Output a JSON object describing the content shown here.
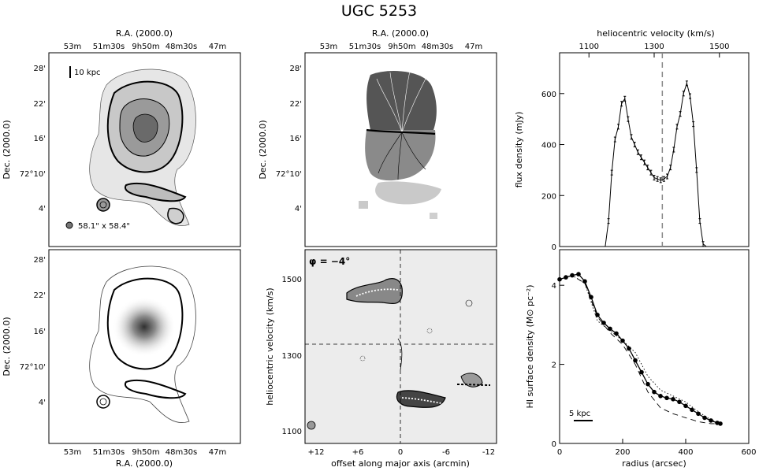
{
  "title": "UGC 5253",
  "panels": {
    "tl": {
      "top_axis_label": "R.A. (2000.0)",
      "top_ticks": [
        "53m",
        "51m30s",
        "9h50m",
        "48m30s",
        "47m"
      ],
      "y_axis_label": "Dec. (2000.0)",
      "y_ticks": [
        "28'",
        "22'",
        "16'",
        "72°10'",
        "4'"
      ],
      "scalebar_label": "10 kpc",
      "beam_label": "58.1\" x 58.4\""
    },
    "tm": {
      "top_axis_label": "R.A. (2000.0)",
      "top_ticks": [
        "53m",
        "51m30s",
        "9h50m",
        "48m30s",
        "47m"
      ],
      "y_axis_label": "Dec. (2000.0)",
      "y_ticks": [
        "28'",
        "22'",
        "16'",
        "72°10'",
        "4'"
      ]
    },
    "bl": {
      "bottom_axis_label": "R.A. (2000.0)",
      "bottom_ticks": [
        "53m",
        "51m30s",
        "9h50m",
        "48m30s",
        "47m"
      ],
      "y_axis_label": "Dec. (2000.0)",
      "y_ticks": [
        "28'",
        "22'",
        "16'",
        "72°10'",
        "4'"
      ]
    },
    "bm": {
      "annotation": "φ = −4°",
      "x_axis_label": "offset along major axis (arcmin)",
      "y_axis_label": "heliocentric velocity (km/s)",
      "x_ticks": [
        "+12",
        "+6",
        "0",
        "-6",
        "-12"
      ],
      "y_ticks": [
        "1500",
        "1300",
        "1100"
      ]
    },
    "tr": {
      "top_axis_label": "heliocentric velocity (km/s)",
      "y_axis_label": "flux density (mJy)"
    },
    "br": {
      "x_axis_label": "radius (arcsec)",
      "y_axis_label": "HI surface density (M⊙ pc⁻²)",
      "scalebar_label": "5 kpc"
    }
  },
  "chart_data": [
    {
      "type": "line",
      "panel": "tr",
      "xlabel": "heliocentric velocity (km/s)",
      "ylabel": "flux density (mJy)",
      "xlim": [
        1010,
        1590
      ],
      "ylim": [
        0,
        760
      ],
      "x_ticks": [
        1100,
        1300,
        1500
      ],
      "y_ticks": [
        0,
        200,
        400,
        600
      ],
      "systemic_velocity": 1325,
      "series": [
        {
          "x": [
            1020,
            1040,
            1060,
            1080,
            1100,
            1120,
            1140,
            1150,
            1160,
            1170,
            1180,
            1190,
            1200,
            1210,
            1220,
            1230,
            1240,
            1250,
            1260,
            1270,
            1280,
            1290,
            1300,
            1310,
            1320,
            1330,
            1340,
            1350,
            1360,
            1370,
            1380,
            1390,
            1400,
            1410,
            1420,
            1430,
            1440,
            1450,
            1460,
            1470,
            1480,
            1490,
            1500,
            1520,
            1540,
            1560,
            1580
          ],
          "y": [
            0,
            0,
            0,
            0,
            0,
            0,
            0,
            0,
            100,
            290,
            420,
            470,
            560,
            580,
            500,
            430,
            400,
            370,
            350,
            330,
            310,
            290,
            270,
            265,
            260,
            265,
            275,
            310,
            380,
            470,
            520,
            600,
            640,
            590,
            480,
            300,
            100,
            10,
            0,
            0,
            0,
            0,
            0,
            0,
            0,
            0,
            0
          ]
        }
      ]
    },
    {
      "type": "line",
      "panel": "br",
      "xlabel": "radius (arcsec)",
      "ylabel": "HI surface density (M⊙ pc⁻²)",
      "xlim": [
        0,
        600
      ],
      "ylim": [
        0,
        4.9
      ],
      "x_ticks": [
        0,
        200,
        400,
        600
      ],
      "y_ticks": [
        0,
        2,
        4
      ],
      "series": [
        {
          "x": [
            0,
            20,
            40,
            60,
            80,
            100,
            120,
            140,
            160,
            180,
            200,
            220,
            240,
            260,
            280,
            300,
            320,
            340,
            360,
            380,
            400,
            420,
            440,
            460,
            480,
            500,
            510
          ],
          "y": [
            4.15,
            4.2,
            4.25,
            4.28,
            4.1,
            3.7,
            3.25,
            3.05,
            2.9,
            2.78,
            2.6,
            2.4,
            2.1,
            1.8,
            1.5,
            1.3,
            1.2,
            1.15,
            1.12,
            1.05,
            0.95,
            0.85,
            0.75,
            0.65,
            0.58,
            0.52,
            0.5
          ]
        },
        {
          "x": [
            0,
            40,
            80,
            120,
            160,
            200,
            240,
            280,
            320,
            360,
            400,
            440,
            480,
            510
          ],
          "y": [
            4.15,
            4.25,
            4.05,
            3.1,
            2.85,
            2.6,
            2.3,
            1.7,
            1.35,
            1.2,
            1.05,
            0.8,
            0.6,
            0.5
          ]
        },
        {
          "x": [
            0,
            40,
            80,
            120,
            160,
            200,
            240,
            280,
            320,
            360,
            400,
            440,
            480,
            510
          ],
          "y": [
            4.15,
            4.25,
            4.05,
            3.2,
            2.8,
            2.5,
            2.0,
            1.3,
            0.9,
            0.75,
            0.65,
            0.55,
            0.5,
            0.5
          ]
        }
      ]
    }
  ]
}
